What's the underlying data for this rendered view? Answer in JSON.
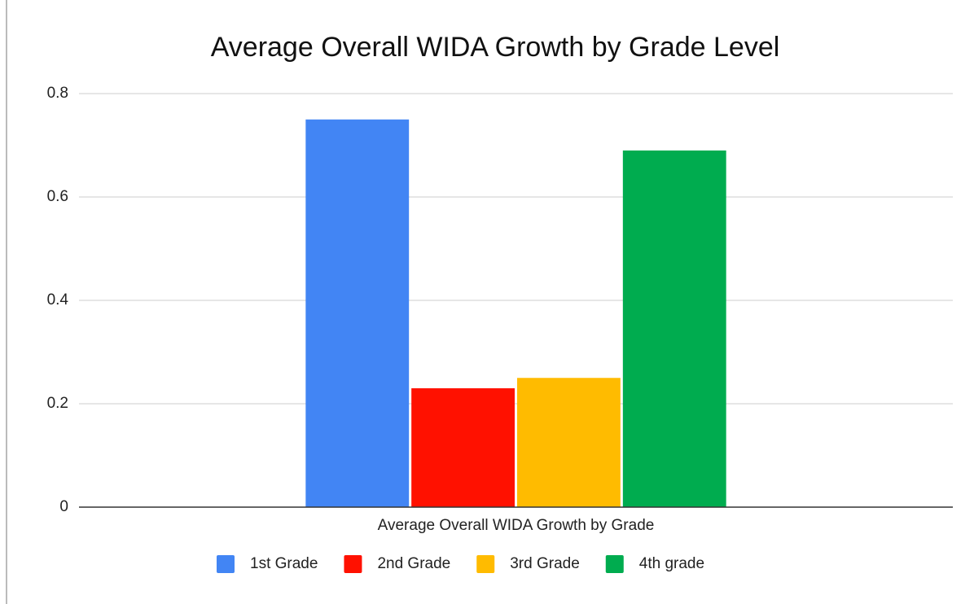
{
  "chart_data": {
    "type": "bar",
    "title": "Average Overall WIDA Growth by Grade Level",
    "categories": [
      "Average Overall WIDA Growth by Grade"
    ],
    "series": [
      {
        "name": "1st Grade",
        "color": "#4285f4",
        "values": [
          0.75
        ]
      },
      {
        "name": "2nd Grade",
        "color": "#ff1100",
        "values": [
          0.23
        ]
      },
      {
        "name": "3rd Grade",
        "color": "#ffbb00",
        "values": [
          0.25
        ]
      },
      {
        "name": "4th grade",
        "color": "#00ac4f",
        "values": [
          0.69
        ]
      }
    ],
    "ylim": [
      0,
      0.8
    ],
    "yticks": [
      0,
      0.2,
      0.4,
      0.6,
      0.8
    ],
    "grid": true,
    "legend": "bottom"
  }
}
